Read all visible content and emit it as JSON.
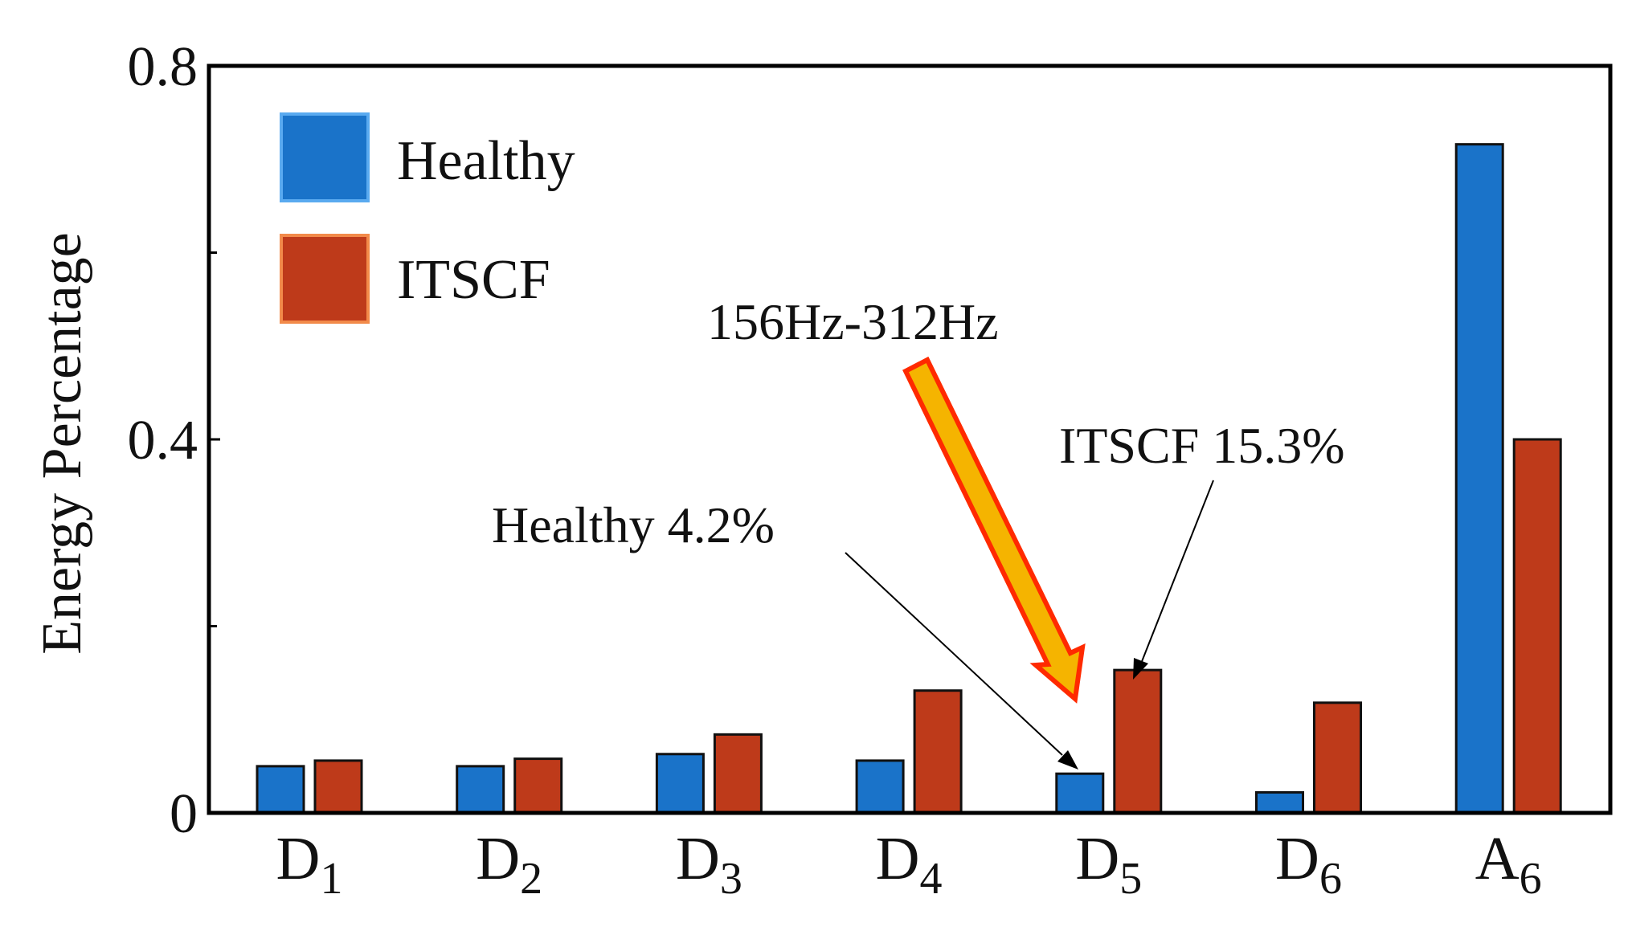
{
  "chart_data": {
    "type": "bar",
    "title": "",
    "xlabel": "",
    "ylabel": "Energy Percentage",
    "ylim": [
      0,
      0.8
    ],
    "yticks": [
      "0",
      "0.4",
      "0.8"
    ],
    "minor_yticks": [
      0.2,
      0.6
    ],
    "grid": false,
    "legend_position": "top-left",
    "categories": [
      {
        "base": "D",
        "sub": "1"
      },
      {
        "base": "D",
        "sub": "2"
      },
      {
        "base": "D",
        "sub": "3"
      },
      {
        "base": "D",
        "sub": "4"
      },
      {
        "base": "D",
        "sub": "5"
      },
      {
        "base": "D",
        "sub": "6"
      },
      {
        "base": "A",
        "sub": "6"
      }
    ],
    "series": [
      {
        "name": "Healthy",
        "color": "#1a73c9",
        "values": [
          0.05,
          0.05,
          0.063,
          0.056,
          0.042,
          0.022,
          0.716
        ]
      },
      {
        "name": "ITSCF",
        "color": "#be3a1a",
        "values": [
          0.056,
          0.058,
          0.084,
          0.131,
          0.153,
          0.118,
          0.4
        ]
      }
    ],
    "annotations": {
      "band_label": "156Hz-312Hz",
      "healthy_label": "Healthy 4.2%",
      "itscf_label": "ITSCF 15.3%"
    },
    "highlight_arrow": {
      "fill": "#f5b400",
      "stroke": "#ff2a00"
    }
  }
}
